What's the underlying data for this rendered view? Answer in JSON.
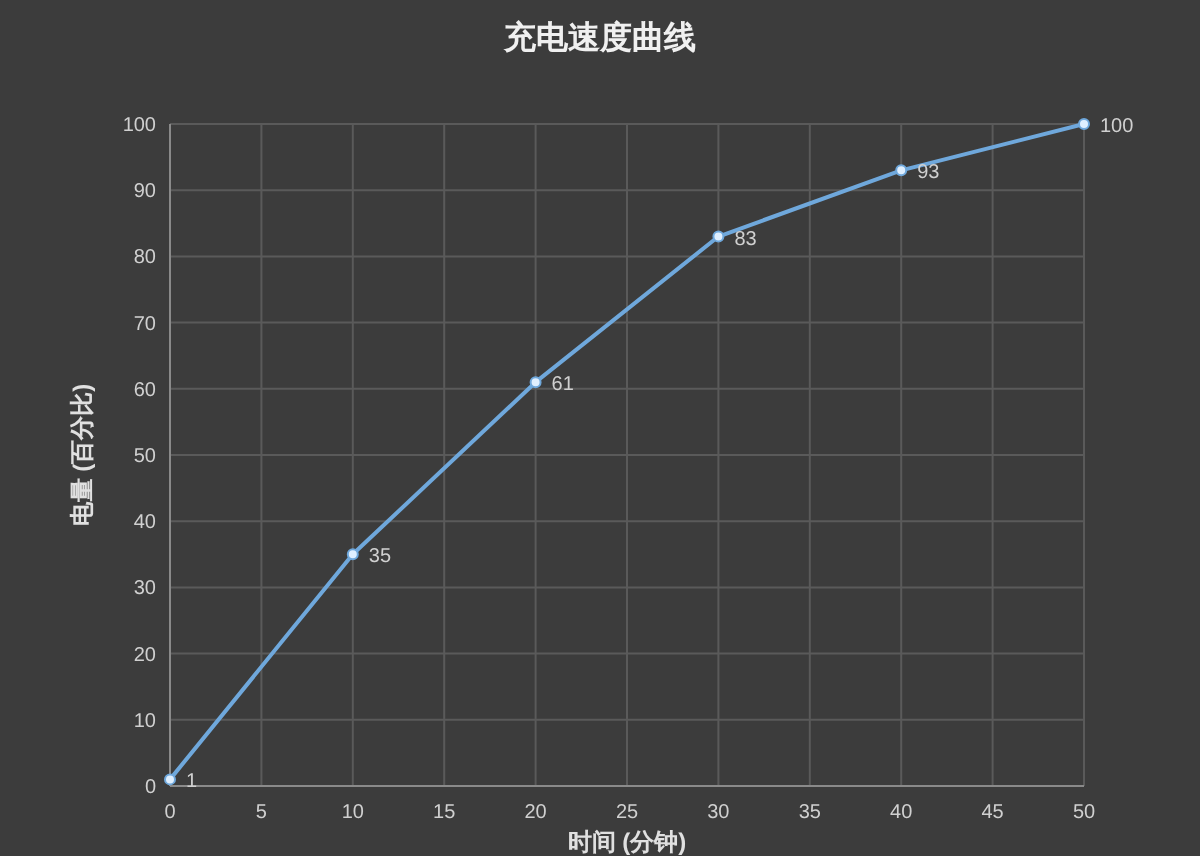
{
  "chart_data": {
    "type": "line",
    "title": "充电速度曲线",
    "xlabel": "时间 (分钟)",
    "ylabel": "电量 (百分比)",
    "x": [
      0,
      10,
      20,
      30,
      40,
      50
    ],
    "series": [
      {
        "color": "#6fa8dc",
        "values": [
          1,
          35,
          61,
          83,
          93,
          100
        ]
      }
    ],
    "xlim": [
      0,
      50
    ],
    "ylim": [
      0,
      100
    ],
    "xticks": [
      0,
      5,
      10,
      15,
      20,
      25,
      30,
      35,
      40,
      45,
      50
    ],
    "yticks": [
      0,
      10,
      20,
      30,
      40,
      50,
      60,
      70,
      80,
      90,
      100
    ],
    "grid": true,
    "data_labels": true,
    "marker": "circle",
    "line_style": "solid"
  }
}
